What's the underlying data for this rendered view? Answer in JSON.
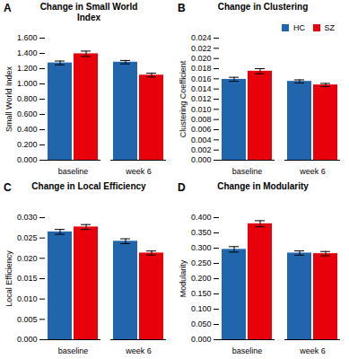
{
  "chart_data": [
    {
      "type": "bar",
      "title": "Change in Small World\nIndex",
      "annotations": [
        "A"
      ],
      "ylabel": "Small World Index",
      "categories": [
        "baseline",
        "week 6"
      ],
      "series": [
        {
          "name": "HC",
          "color": "#2166ac",
          "values": [
            1.275,
            1.285
          ],
          "errors": [
            0.025,
            0.022
          ]
        },
        {
          "name": "SZ",
          "color": "#e8000a",
          "values": [
            1.395,
            1.115
          ],
          "errors": [
            0.035,
            0.025
          ]
        }
      ],
      "ylim": [
        0,
        1.6
      ],
      "yticks": [
        {
          "value": 0.0,
          "label": "0.000"
        },
        {
          "value": 0.2,
          "label": "0.200"
        },
        {
          "value": 0.4,
          "label": "0.400"
        },
        {
          "value": 0.6,
          "label": "0.600"
        },
        {
          "value": 0.8,
          "label": "0.800"
        },
        {
          "value": 1.0,
          "label": "1.000"
        },
        {
          "value": 1.2,
          "label": "1.200"
        },
        {
          "value": 1.4,
          "label": "1.400"
        },
        {
          "value": 1.6,
          "label": "1.600"
        }
      ]
    },
    {
      "type": "bar",
      "title": "Change in Clustering",
      "annotations": [
        "B"
      ],
      "ylabel": "Clustering Coefficient",
      "categories": [
        "baseline",
        "week 6"
      ],
      "series": [
        {
          "name": "HC",
          "color": "#2166ac",
          "values": [
            0.0159,
            0.0155
          ],
          "errors": [
            0.0004,
            0.0003
          ]
        },
        {
          "name": "SZ",
          "color": "#e8000a",
          "values": [
            0.0175,
            0.0148
          ],
          "errors": [
            0.0005,
            0.0003
          ]
        }
      ],
      "ylim": [
        0,
        0.024
      ],
      "yticks": [
        {
          "value": 0.0,
          "label": "0.000"
        },
        {
          "value": 0.002,
          "label": "0.002"
        },
        {
          "value": 0.004,
          "label": "0.004"
        },
        {
          "value": 0.006,
          "label": "0.006"
        },
        {
          "value": 0.008,
          "label": "0.008"
        },
        {
          "value": 0.01,
          "label": "0.010"
        },
        {
          "value": 0.012,
          "label": "0.012"
        },
        {
          "value": 0.014,
          "label": "0.014"
        },
        {
          "value": 0.016,
          "label": "0.016"
        },
        {
          "value": 0.018,
          "label": "0.018"
        },
        {
          "value": 0.02,
          "label": "0.020"
        },
        {
          "value": 0.022,
          "label": "0.022"
        },
        {
          "value": 0.024,
          "label": "0.024"
        }
      ],
      "legend": "right"
    },
    {
      "type": "bar",
      "title": "Change in Local Efficiency",
      "annotations": [
        "C"
      ],
      "ylabel": "Local Efficiency",
      "categories": [
        "baseline",
        "week 6"
      ],
      "series": [
        {
          "name": "HC",
          "color": "#2166ac",
          "values": [
            0.0265,
            0.0242
          ],
          "errors": [
            0.0006,
            0.0006
          ]
        },
        {
          "name": "SZ",
          "color": "#e8000a",
          "values": [
            0.0277,
            0.0213
          ],
          "errors": [
            0.0006,
            0.0005
          ]
        }
      ],
      "ylim": [
        0,
        0.03
      ],
      "yticks": [
        {
          "value": 0.0,
          "label": "0.000"
        },
        {
          "value": 0.005,
          "label": "0.005"
        },
        {
          "value": 0.01,
          "label": "0.010"
        },
        {
          "value": 0.015,
          "label": "0.015"
        },
        {
          "value": 0.02,
          "label": "0.020"
        },
        {
          "value": 0.025,
          "label": "0.025"
        },
        {
          "value": 0.03,
          "label": "0.030"
        }
      ]
    },
    {
      "type": "bar",
      "title": "Change in Modularity",
      "annotations": [
        "D"
      ],
      "ylabel": "Modularity",
      "categories": [
        "baseline",
        "week 6"
      ],
      "series": [
        {
          "name": "HC",
          "color": "#2166ac",
          "values": [
            0.296,
            0.284
          ],
          "errors": [
            0.009,
            0.007
          ]
        },
        {
          "name": "SZ",
          "color": "#e8000a",
          "values": [
            0.38,
            0.282
          ],
          "errors": [
            0.01,
            0.007
          ]
        }
      ],
      "ylim": [
        0,
        0.4
      ],
      "yticks": [
        {
          "value": 0.0,
          "label": "0.000"
        },
        {
          "value": 0.05,
          "label": "0.050"
        },
        {
          "value": 0.1,
          "label": "0.100"
        },
        {
          "value": 0.15,
          "label": "0.150"
        },
        {
          "value": 0.2,
          "label": "0.200"
        },
        {
          "value": 0.25,
          "label": "0.250"
        },
        {
          "value": 0.3,
          "label": "0.300"
        },
        {
          "value": 0.35,
          "label": "0.350"
        },
        {
          "value": 0.4,
          "label": "0.400"
        }
      ]
    }
  ]
}
